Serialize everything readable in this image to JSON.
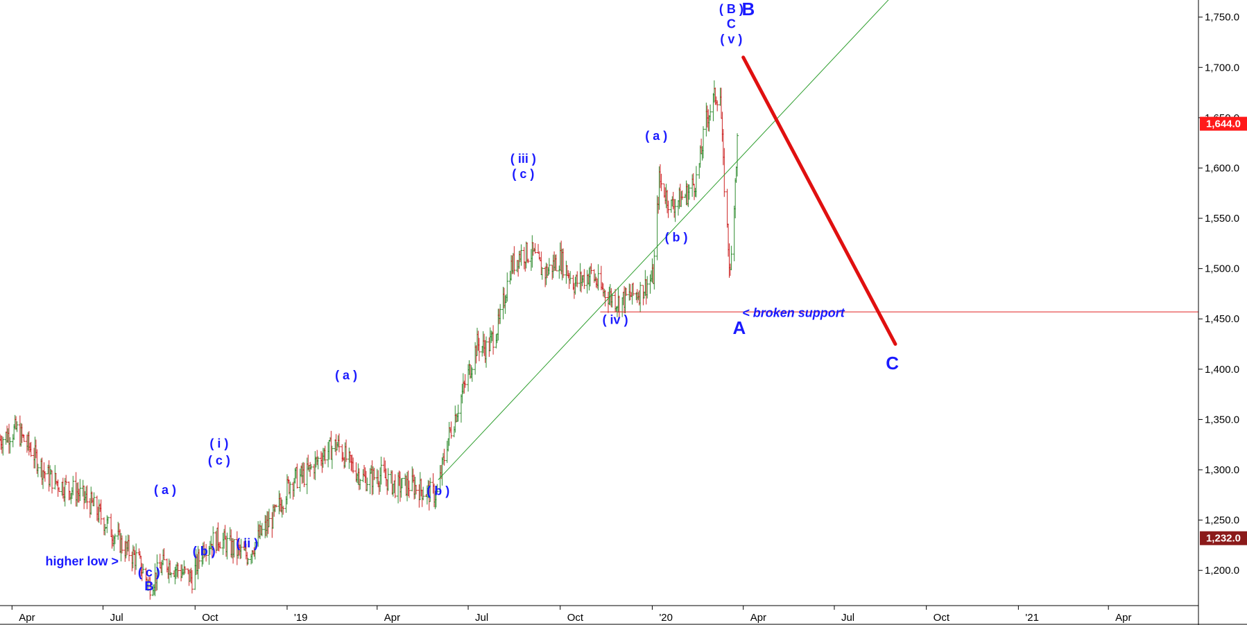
{
  "chart_data": {
    "type": "line",
    "title": "",
    "xlabel": "",
    "ylabel": "",
    "x_range": [
      "2018-03-20",
      "2021-06-30"
    ],
    "ylim": [
      1165,
      1767
    ],
    "grid": false,
    "x_ticks": [
      {
        "date": "2018-04-01",
        "label": "Apr"
      },
      {
        "date": "2018-07-01",
        "label": "Jul"
      },
      {
        "date": "2018-10-01",
        "label": "Oct"
      },
      {
        "date": "2019-01-01",
        "label": "'19"
      },
      {
        "date": "2019-04-01",
        "label": "Apr"
      },
      {
        "date": "2019-07-01",
        "label": "Jul"
      },
      {
        "date": "2019-10-01",
        "label": "Oct"
      },
      {
        "date": "2020-01-01",
        "label": "'20"
      },
      {
        "date": "2020-04-01",
        "label": "Apr"
      },
      {
        "date": "2020-07-01",
        "label": "Jul"
      },
      {
        "date": "2020-10-01",
        "label": "Oct"
      },
      {
        "date": "2021-01-01",
        "label": "'21"
      },
      {
        "date": "2021-04-01",
        "label": "Apr"
      }
    ],
    "y_ticks": [
      {
        "value": 1200,
        "label": "1,200.0"
      },
      {
        "value": 1250,
        "label": "1,250.0"
      },
      {
        "value": 1300,
        "label": "1,300.0"
      },
      {
        "value": 1350,
        "label": "1,350.0"
      },
      {
        "value": 1400,
        "label": "1,400.0"
      },
      {
        "value": 1450,
        "label": "1,450.0"
      },
      {
        "value": 1500,
        "label": "1,500.0"
      },
      {
        "value": 1550,
        "label": "1,550.0"
      },
      {
        "value": 1600,
        "label": "1,600.0"
      },
      {
        "value": 1650,
        "label": "1,650.0"
      },
      {
        "value": 1700,
        "label": "1,700.0"
      },
      {
        "value": 1750,
        "label": "1,750.0"
      }
    ],
    "series": [
      {
        "color_up": "#2e8b2e",
        "color_down": "#cc2222",
        "x": [
          "2018-03-20",
          "2018-04-05",
          "2018-04-20",
          "2018-05-05",
          "2018-05-20",
          "2018-06-05",
          "2018-06-20",
          "2018-07-05",
          "2018-07-20",
          "2018-08-05",
          "2018-08-16",
          "2018-09-01",
          "2018-09-15",
          "2018-09-28",
          "2018-10-10",
          "2018-10-25",
          "2018-11-10",
          "2018-11-22",
          "2018-12-05",
          "2018-12-20",
          "2019-01-05",
          "2019-01-20",
          "2019-02-05",
          "2019-02-20",
          "2019-03-05",
          "2019-03-20",
          "2019-04-05",
          "2019-04-20",
          "2019-05-05",
          "2019-05-20",
          "2019-05-31",
          "2019-06-10",
          "2019-06-20",
          "2019-07-01",
          "2019-07-10",
          "2019-07-20",
          "2019-08-01",
          "2019-08-12",
          "2019-08-22",
          "2019-09-03",
          "2019-09-15",
          "2019-10-01",
          "2019-10-15",
          "2019-11-01",
          "2019-11-12",
          "2019-11-28",
          "2019-12-10",
          "2019-12-20",
          "2020-01-02",
          "2020-01-08",
          "2020-01-20",
          "2020-02-05",
          "2020-02-15",
          "2020-02-24",
          "2020-03-04",
          "2020-03-09",
          "2020-03-12",
          "2020-03-19",
          "2020-03-24",
          "2020-03-27"
        ],
        "y": [
          1330,
          1340,
          1320,
          1295,
          1285,
          1278,
          1265,
          1245,
          1225,
          1210,
          1185,
          1208,
          1200,
          1192,
          1225,
          1232,
          1220,
          1215,
          1235,
          1255,
          1290,
          1295,
          1315,
          1325,
          1305,
          1290,
          1295,
          1283,
          1285,
          1278,
          1275,
          1328,
          1360,
          1395,
          1425,
          1420,
          1445,
          1500,
          1515,
          1515,
          1495,
          1510,
          1485,
          1495,
          1478,
          1467,
          1473,
          1477,
          1492,
          1588,
          1562,
          1575,
          1590,
          1648,
          1672,
          1673,
          1600,
          1492,
          1590,
          1644
        ]
      }
    ],
    "current_price_label": "1,644.0",
    "current_price_value": 1644,
    "low_price_label": "1,232.0",
    "low_price_value": 1232,
    "support_level": 1457,
    "trendline": {
      "start": {
        "date": "2019-06-01",
        "value": 1290
      },
      "end": {
        "date": "2020-09-26",
        "value": 1802
      }
    },
    "projection": {
      "start": {
        "date": "2020-04-01",
        "value": 1710
      },
      "end": {
        "date": "2020-08-31",
        "value": 1425
      }
    },
    "annotations": [
      {
        "text": "( a )",
        "date": "2018-09-01",
        "value": 1276
      },
      {
        "text": "( b )",
        "date": "2018-10-10",
        "value": 1215
      },
      {
        "text": "( i )",
        "date": "2018-10-25",
        "value": 1322
      },
      {
        "text": "( c )",
        "date": "2018-10-25",
        "value": 1305
      },
      {
        "text": "( ii )",
        "date": "2018-11-22",
        "value": 1223
      },
      {
        "text": "( a )",
        "date": "2019-03-01",
        "value": 1390
      },
      {
        "text": "( b )",
        "date": "2019-06-01",
        "value": 1275
      },
      {
        "text": "( iii )",
        "date": "2019-08-25",
        "value": 1605
      },
      {
        "text": "( c )",
        "date": "2019-08-25",
        "value": 1590
      },
      {
        "text": "( iv )",
        "date": "2019-11-25",
        "value": 1445
      },
      {
        "text": "( a )",
        "date": "2020-01-05",
        "value": 1628
      },
      {
        "text": "( b )",
        "date": "2020-01-25",
        "value": 1527
      },
      {
        "text": "( B )",
        "date": "2020-03-20",
        "value": 1754
      },
      {
        "text": "C",
        "date": "2020-03-20",
        "value": 1739
      },
      {
        "text": "( v )",
        "date": "2020-03-20",
        "value": 1724
      },
      {
        "text": "higher low >",
        "date": "2018-06-10",
        "value": 1205
      },
      {
        "text": "( c )",
        "date": "2018-08-16",
        "value": 1194
      },
      {
        "text": "B",
        "date": "2018-08-16",
        "value": 1180
      },
      {
        "text": "< broken support",
        "date": "2020-03-31",
        "value": 1452
      }
    ],
    "big_annotations": [
      {
        "text": "B",
        "date": "2020-04-06",
        "value": 1752
      },
      {
        "text": "A",
        "date": "2020-03-28",
        "value": 1435
      },
      {
        "text": "C",
        "date": "2020-08-28",
        "value": 1400
      }
    ]
  }
}
